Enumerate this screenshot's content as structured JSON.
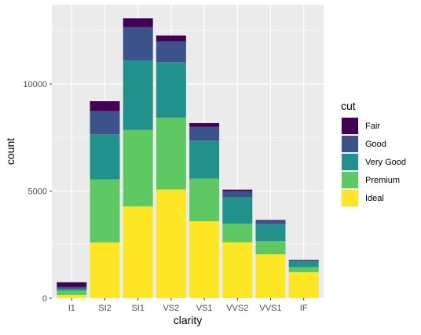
{
  "chart_data": {
    "type": "bar",
    "stacked": true,
    "xlabel": "clarity",
    "ylabel": "count",
    "categories": [
      "I1",
      "SI2",
      "SI1",
      "VS2",
      "VS1",
      "VVS2",
      "VVS1",
      "IF"
    ],
    "ylim": [
      0,
      13700
    ],
    "yticks": [
      0,
      5000,
      10000
    ],
    "ytick_labels": [
      "0",
      "5000",
      "10000"
    ],
    "grid": true,
    "legend": {
      "title": "cut",
      "placement": "right"
    },
    "series": [
      {
        "name": "Ideal",
        "color": "#fde725",
        "values": [
          146,
          2598,
          4282,
          5071,
          3589,
          2606,
          2047,
          1212
        ]
      },
      {
        "name": "Premium",
        "color": "#5ec962",
        "values": [
          205,
          2949,
          3575,
          3357,
          1989,
          870,
          616,
          230
        ]
      },
      {
        "name": "Very Good",
        "color": "#21918c",
        "values": [
          84,
          2100,
          3240,
          2591,
          1775,
          1235,
          789,
          268
        ]
      },
      {
        "name": "Good",
        "color": "#3b528b",
        "values": [
          96,
          1081,
          1560,
          978,
          648,
          286,
          186,
          71
        ]
      },
      {
        "name": "Fair",
        "color": "#440154",
        "values": [
          210,
          466,
          408,
          261,
          170,
          69,
          17,
          9
        ]
      }
    ],
    "legend_order": [
      "Fair",
      "Good",
      "Very Good",
      "Premium",
      "Ideal"
    ]
  }
}
